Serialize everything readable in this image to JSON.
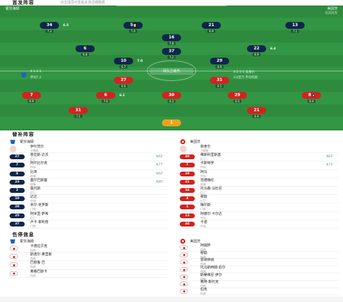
{
  "header": {
    "title": "首发阵容",
    "subtitle": "点击球员可查看本场详细数据"
  },
  "home_team": {
    "name": "霍芬海姆",
    "color": "#10264a"
  },
  "away_team": {
    "name": "美因茨",
    "form": "比比比负",
    "color": "#d2231f"
  },
  "pitch": {
    "referee": "球队主裁判",
    "home_notes": [
      "4-1-4-1",
      "平均7.2"
    ],
    "away_notes": [
      "4-2-3-1 总身价",
      "3.6百万 平均年龄"
    ]
  },
  "home_lineup": [
    {
      "num": "34",
      "rating": "6.5",
      "name": "斯科夫",
      "tag": "7.3"
    },
    {
      "num": "5",
      "rating": "",
      "name": "阿克波古马",
      "tag": "7.4"
    },
    {
      "num": "21",
      "rating": "",
      "name": "伊特",
      "tag": "6.9"
    },
    {
      "num": "13",
      "rating": "",
      "name": "卡德拉贝克",
      "tag": "7.1"
    },
    {
      "num": "16",
      "rating": "",
      "name": "格里利奇",
      "tag": "7.8"
    },
    {
      "num": "6",
      "rating": "",
      "name": "格里利奇",
      "tag": "6.8"
    },
    {
      "num": "37",
      "rating": "",
      "name": "阿德迈",
      "tag": "7.2"
    },
    {
      "num": "22",
      "rating": "6.4",
      "name": "斯蒂尔",
      "tag": "6.9"
    },
    {
      "num": "10",
      "rating": "7.0",
      "name": "莱泽",
      "tag": "6.7"
    },
    {
      "num": "29",
      "rating": "",
      "name": "拜尔",
      "tag": "6.9"
    }
  ],
  "away_lineup": [
    {
      "num": "27",
      "rating": "",
      "name": "奥尼西沃",
      "tag": "6.6"
    },
    {
      "num": "31",
      "rating": "",
      "name": "巴雷罗",
      "tag": "6.5"
    },
    {
      "num": "7",
      "rating": "6.1",
      "name": "李在城",
      "tag": "6.9"
    },
    {
      "num": "6",
      "rating": "",
      "name": "伯克哈特",
      "tag": "7.0"
    },
    {
      "num": "30",
      "rating": "",
      "name": "威德默",
      "tag": "6.3"
    },
    {
      "num": "29",
      "rating": "",
      "name": "马尔蒂尼",
      "tag": "6.5"
    },
    {
      "num": "8",
      "rating": "",
      "name": "内贝尔",
      "tag": "6.4"
    },
    {
      "num": "31",
      "rating": "",
      "name": "斯坦迪什",
      "tag": "7.1"
    },
    {
      "num": "21",
      "rating": "",
      "name": "范登伯格",
      "tag": "6.8"
    },
    {
      "num": "1",
      "rating": "",
      "name": "策特雷尔",
      "tag": "7.0"
    }
  ],
  "bench_title": "替补阵容",
  "bench_home": [
    {
      "num": "27",
      "name": "普拉斯·达沃",
      "pos": "后卫",
      "sub": "62'"
    },
    {
      "num": "7",
      "name": "阿尔比尔克",
      "pos": "中场",
      "sub": "77'"
    },
    {
      "num": "9",
      "name": "比埃",
      "pos": "前锋",
      "sub": "62'"
    },
    {
      "num": "23",
      "name": "塞尔巴斯塞",
      "pos": "前锋",
      "sub": "85'"
    },
    {
      "num": "2",
      "name": "桑托斯",
      "pos": "后卫",
      "sub": ""
    },
    {
      "num": "10",
      "name": "达达",
      "pos": "中场",
      "sub": ""
    },
    {
      "num": "28",
      "name": "米尔·克罗斯",
      "pos": "门将",
      "sub": ""
    },
    {
      "num": "25",
      "name": "阿米里·萨希",
      "pos": "后卫",
      "sub": ""
    },
    {
      "num": "37",
      "name": "卢卡·菲利普",
      "pos": "门将",
      "sub": ""
    }
  ],
  "bench_away": [
    {
      "num": "40",
      "name": "维斯科里斯基",
      "pos": "后卫",
      "sub": "62'"
    },
    {
      "num": "7",
      "name": "卡斯特罗",
      "pos": "中场",
      "sub": "72'"
    },
    {
      "num": "19",
      "name": "阿马",
      "pos": "中场",
      "sub": ""
    },
    {
      "num": "21",
      "name": "范德梅伦",
      "pos": "前锋",
      "sub": ""
    },
    {
      "num": "16",
      "name": "托马森·马杜尼",
      "pos": "后卫",
      "sub": ""
    },
    {
      "num": "4",
      "name": "穆勒",
      "pos": "后卫",
      "sub": ""
    },
    {
      "num": "1",
      "name": "梅尔斯",
      "pos": "门将",
      "sub": ""
    },
    {
      "num": "13",
      "name": "阿德尔·卡尔达",
      "pos": "中场",
      "sub": ""
    },
    {
      "num": "44",
      "name": "卡诺",
      "pos": "中场",
      "sub": ""
    }
  ],
  "coach_home": {
    "name": "伊尔茨尔",
    "role": "主教练"
  },
  "coach_away": {
    "name": "菲舍尔",
    "role": "主教练"
  },
  "injury_title": "伤停信息",
  "injury_home": [
    {
      "name": "卡德拉贝克",
      "status": "伤病"
    },
    {
      "name": "斯诺尔·弗里斯",
      "status": "伤病"
    },
    {
      "name": "巴勃鲁·巴",
      "status": "伤病"
    },
    {
      "name": "奥格巴斯卡",
      "status": "伤病"
    }
  ],
  "injury_away": [
    {
      "name": "阿姆萨",
      "status": "伤病"
    },
    {
      "name": "穆勒",
      "status": "伤病"
    },
    {
      "name": "雷纳特纳",
      "status": "伤病"
    },
    {
      "name": "托马斯西姆·伯尔",
      "status": "伤病"
    },
    {
      "name": "斯蒂维尼·伊尔",
      "status": "伤病"
    },
    {
      "name": "格特·斯托克",
      "status": "伤病"
    },
    {
      "name": "伯克",
      "status": "伤病"
    }
  ]
}
